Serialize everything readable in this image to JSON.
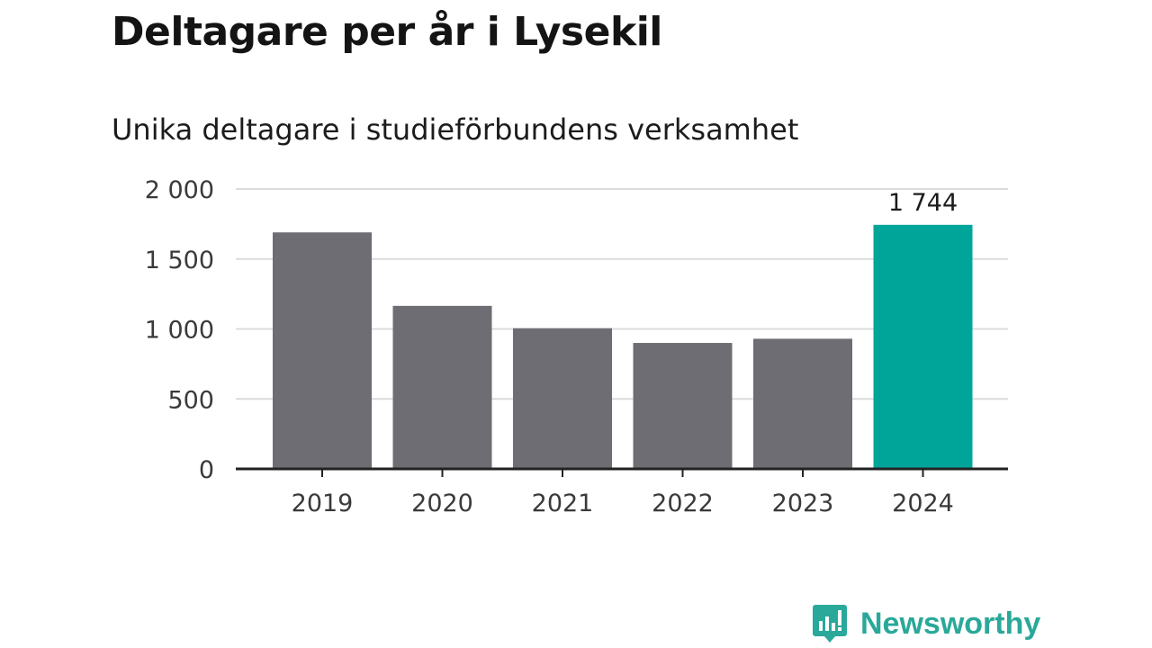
{
  "title": "Deltagare per år i Lysekil",
  "subtitle": "Unika deltagare i studieförbundens verksamhet",
  "brand": {
    "name": "Newsworthy",
    "color": "#2aa89a",
    "icon": "newsworthy-logo-icon"
  },
  "colors": {
    "bar": "#6e6d73",
    "highlight": "#00a59a",
    "grid": "#dcdcdc",
    "axis": "#222222"
  },
  "chart_data": {
    "type": "bar",
    "categories": [
      "2019",
      "2020",
      "2021",
      "2022",
      "2023",
      "2024"
    ],
    "values": [
      1690,
      1165,
      1005,
      900,
      930,
      1744
    ],
    "highlight_index": 5,
    "data_labels": [
      {
        "index": 5,
        "text": "1 744"
      }
    ],
    "ylim": [
      0,
      2000
    ],
    "yticks": [
      0,
      500,
      1000,
      1500,
      2000
    ],
    "ytick_labels": [
      "0",
      "500",
      "1 000",
      "1 500",
      "2 000"
    ],
    "grid": true,
    "xlabel": "",
    "ylabel": "",
    "legend": "none"
  }
}
